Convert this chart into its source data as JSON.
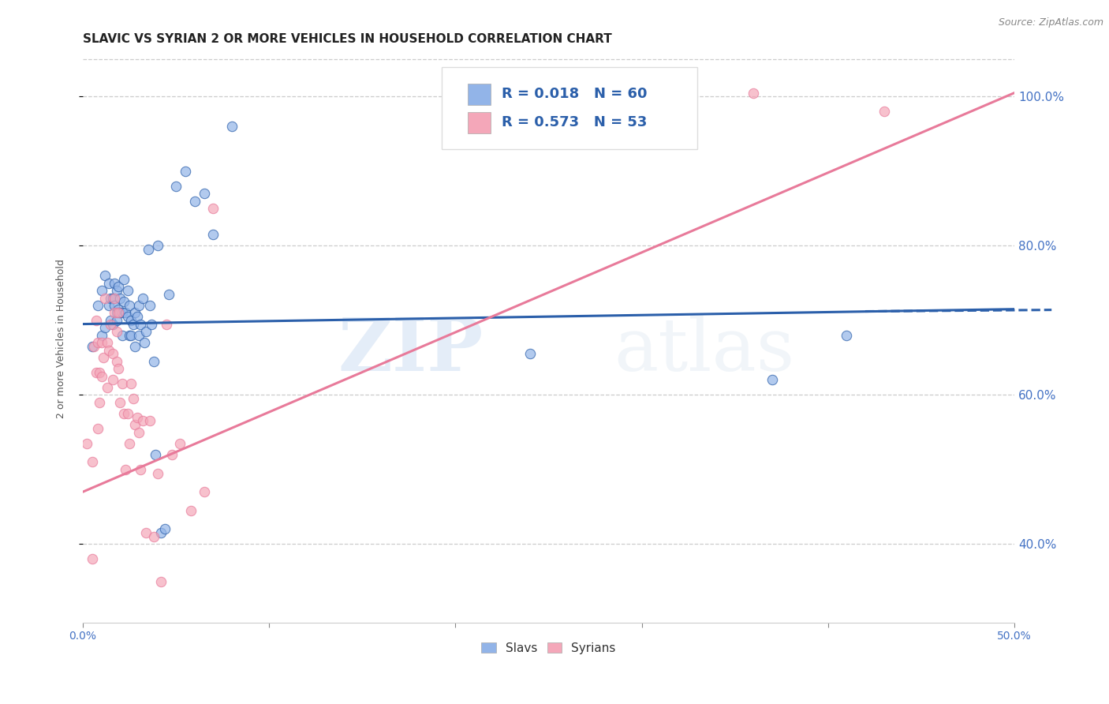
{
  "title": "SLAVIC VS SYRIAN 2 OR MORE VEHICLES IN HOUSEHOLD CORRELATION CHART",
  "source": "Source: ZipAtlas.com",
  "ylabel": "2 or more Vehicles in Household",
  "color_slavs": "#92b4e8",
  "color_syrians": "#f4a7b9",
  "color_slavs_line": "#2b5faa",
  "color_syrians_line": "#e87a9a",
  "color_legend_text": "#2b5faa",
  "background_color": "#ffffff",
  "xlim": [
    0.0,
    0.5
  ],
  "ylim": [
    0.295,
    1.055
  ],
  "xtick_vals": [
    0.0,
    0.1,
    0.2,
    0.3,
    0.4,
    0.5
  ],
  "xtick_labels": [
    "0.0%",
    "",
    "",
    "",
    "",
    "50.0%"
  ],
  "ytick_vals": [
    0.4,
    0.6,
    0.8,
    1.0
  ],
  "ytick_labels": [
    "40.0%",
    "60.0%",
    "80.0%",
    "100.0%"
  ],
  "grid_ytick_vals": [
    0.4,
    0.6,
    0.8,
    1.0
  ],
  "slavs_x": [
    0.005,
    0.008,
    0.01,
    0.01,
    0.012,
    0.012,
    0.014,
    0.014,
    0.015,
    0.015,
    0.016,
    0.016,
    0.017,
    0.017,
    0.018,
    0.018,
    0.018,
    0.019,
    0.019,
    0.02,
    0.02,
    0.021,
    0.021,
    0.022,
    0.022,
    0.023,
    0.024,
    0.024,
    0.025,
    0.025,
    0.026,
    0.026,
    0.027,
    0.028,
    0.028,
    0.029,
    0.03,
    0.03,
    0.031,
    0.032,
    0.033,
    0.034,
    0.035,
    0.036,
    0.037,
    0.038,
    0.039,
    0.04,
    0.042,
    0.044,
    0.046,
    0.05,
    0.055,
    0.06,
    0.065,
    0.07,
    0.08,
    0.24,
    0.37,
    0.41
  ],
  "slavs_y": [
    0.665,
    0.72,
    0.68,
    0.74,
    0.69,
    0.76,
    0.72,
    0.75,
    0.7,
    0.73,
    0.695,
    0.73,
    0.72,
    0.75,
    0.71,
    0.74,
    0.7,
    0.715,
    0.745,
    0.73,
    0.71,
    0.68,
    0.71,
    0.725,
    0.755,
    0.71,
    0.705,
    0.74,
    0.68,
    0.72,
    0.7,
    0.68,
    0.695,
    0.71,
    0.665,
    0.705,
    0.72,
    0.68,
    0.695,
    0.73,
    0.67,
    0.685,
    0.795,
    0.72,
    0.695,
    0.645,
    0.52,
    0.8,
    0.415,
    0.42,
    0.735,
    0.88,
    0.9,
    0.86,
    0.87,
    0.815,
    0.96,
    0.655,
    0.62,
    0.68
  ],
  "syrians_x": [
    0.002,
    0.005,
    0.005,
    0.006,
    0.007,
    0.007,
    0.008,
    0.008,
    0.009,
    0.009,
    0.01,
    0.01,
    0.011,
    0.012,
    0.013,
    0.013,
    0.014,
    0.015,
    0.016,
    0.016,
    0.017,
    0.017,
    0.018,
    0.018,
    0.019,
    0.019,
    0.02,
    0.021,
    0.022,
    0.023,
    0.024,
    0.025,
    0.026,
    0.027,
    0.028,
    0.029,
    0.03,
    0.031,
    0.032,
    0.034,
    0.036,
    0.038,
    0.04,
    0.042,
    0.045,
    0.048,
    0.052,
    0.058,
    0.065,
    0.07,
    0.28,
    0.36,
    0.43
  ],
  "syrians_y": [
    0.535,
    0.38,
    0.51,
    0.665,
    0.63,
    0.7,
    0.555,
    0.67,
    0.63,
    0.59,
    0.625,
    0.67,
    0.65,
    0.73,
    0.67,
    0.61,
    0.66,
    0.695,
    0.62,
    0.655,
    0.71,
    0.73,
    0.645,
    0.685,
    0.635,
    0.71,
    0.59,
    0.615,
    0.575,
    0.5,
    0.575,
    0.535,
    0.615,
    0.595,
    0.56,
    0.57,
    0.55,
    0.5,
    0.565,
    0.415,
    0.565,
    0.41,
    0.495,
    0.35,
    0.695,
    0.52,
    0.535,
    0.445,
    0.47,
    0.85,
    0.985,
    1.005,
    0.98
  ],
  "slavs_trend_x": [
    0.0,
    0.5
  ],
  "slavs_trend_y": [
    0.695,
    0.715
  ],
  "syrians_trend_x": [
    0.0,
    0.5
  ],
  "syrians_trend_y": [
    0.47,
    1.005
  ],
  "watermark_text": "ZIPatlas",
  "legend_r_slavs": "R = 0.018",
  "legend_n_slavs": "N = 60",
  "legend_r_syrians": "R = 0.573",
  "legend_n_syrians": "N = 53",
  "title_fontsize": 11,
  "axis_label_fontsize": 9,
  "tick_fontsize": 10
}
